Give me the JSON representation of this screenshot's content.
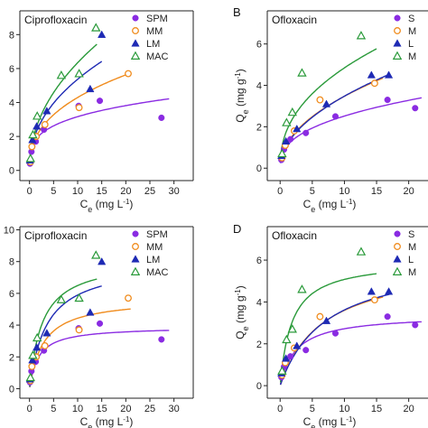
{
  "colors": {
    "SPM": "#8a2be2",
    "MM": "#f08c1e",
    "LM": "#1e2ab4",
    "MAC": "#2a9a3a"
  },
  "markers": {
    "SPM": "circle",
    "MM": "open-circle",
    "LM": "triangle",
    "MAC": "open-triangle"
  },
  "chart_data": [
    {
      "id": "A",
      "type": "scatter",
      "letter": "",
      "title": "Ciprofloxacin",
      "xlabel": "Ce (mg L-1)",
      "ylabel": "",
      "xlim": [
        -2,
        34
      ],
      "ylim": [
        -0.6,
        9.4
      ],
      "xticks": [
        0,
        5,
        10,
        15,
        20,
        25,
        30
      ],
      "yticks": [
        0,
        2,
        4,
        6,
        8
      ],
      "legend": [
        "SPM",
        "MM",
        "LM",
        "MAC"
      ],
      "series": [
        {
          "name": "SPM",
          "x": [
            0.1,
            0.4,
            1.3,
            3.0,
            10.2,
            14.6,
            27.4
          ],
          "y": [
            0.4,
            1.1,
            1.7,
            2.4,
            3.8,
            4.1,
            3.1
          ],
          "fit": {
            "model": "freundlich",
            "k": 1.7,
            "n": 0.27,
            "xmax": 29
          }
        },
        {
          "name": "MM",
          "x": [
            0.2,
            0.5,
            1.4,
            3.2,
            10.3,
            20.5
          ],
          "y": [
            0.5,
            1.4,
            2.0,
            2.7,
            3.7,
            5.7
          ],
          "fit": {
            "model": "freundlich",
            "k": 1.75,
            "n": 0.39,
            "xmax": 21
          }
        },
        {
          "name": "LM",
          "x": [
            0.1,
            0.6,
            1.5,
            3.6,
            12.6,
            15.0
          ],
          "y": [
            0.6,
            1.8,
            2.6,
            3.5,
            4.8,
            8.0
          ],
          "fit": {
            "model": "freundlich",
            "k": 1.95,
            "n": 0.44,
            "xmax": 15
          }
        },
        {
          "name": "MAC",
          "x": [
            0.2,
            0.7,
            1.6,
            6.6,
            10.3,
            13.8
          ],
          "y": [
            0.7,
            2.1,
            3.2,
            5.6,
            5.7,
            8.4
          ],
          "fit": {
            "model": "freundlich",
            "k": 2.15,
            "n": 0.47,
            "xmax": 14
          }
        }
      ]
    },
    {
      "id": "B",
      "type": "scatter",
      "letter": "B",
      "title": "Ofloxacin",
      "xlabel": "Ce (mg L-1)",
      "ylabel": "Qe (mg g-1)",
      "xlim": [
        -2,
        23
      ],
      "ylim": [
        -0.6,
        7.6
      ],
      "xticks": [
        0,
        5,
        10,
        15,
        20
      ],
      "yticks": [
        0,
        2,
        4,
        6
      ],
      "legend": [
        "S",
        "M",
        "L",
        "M"
      ],
      "series": [
        {
          "name": "SPM",
          "x": [
            0.2,
            0.6,
            1.6,
            4.0,
            8.6,
            16.7,
            21.0
          ],
          "y": [
            0.4,
            0.9,
            1.4,
            1.7,
            2.5,
            3.3,
            2.9
          ],
          "fit": {
            "model": "freundlich",
            "k": 1.05,
            "n": 0.38,
            "xmax": 22
          }
        },
        {
          "name": "MM",
          "x": [
            0.3,
            0.8,
            2.2,
            6.2,
            14.7
          ],
          "y": [
            0.5,
            1.1,
            1.8,
            3.3,
            4.1
          ],
          "fit": {
            "model": "freundlich",
            "k": 1.15,
            "n": 0.48,
            "xmax": 16
          }
        },
        {
          "name": "LM",
          "x": [
            0.2,
            0.9,
            2.6,
            7.2,
            14.2,
            16.9
          ],
          "y": [
            0.6,
            1.3,
            1.9,
            3.1,
            4.5,
            4.5
          ],
          "fit": {
            "model": "freundlich",
            "k": 1.1,
            "n": 0.5,
            "xmax": 17
          }
        },
        {
          "name": "MAC",
          "x": [
            0.3,
            1.0,
            1.9,
            3.4,
            12.6
          ],
          "y": [
            0.7,
            2.2,
            2.7,
            4.6,
            6.4
          ],
          "fit": {
            "model": "freundlich",
            "k": 1.8,
            "n": 0.43,
            "xmax": 15
          }
        }
      ]
    },
    {
      "id": "C",
      "type": "scatter",
      "letter": "",
      "title": "Ciprofloxacin",
      "xlabel": "Ce (mg L-1)",
      "ylabel": "",
      "xlim": [
        -2,
        34
      ],
      "ylim": [
        -0.6,
        10.2
      ],
      "xticks": [
        0,
        5,
        10,
        15,
        20,
        25,
        30
      ],
      "yticks": [
        0,
        2,
        4,
        6,
        8,
        10
      ],
      "legend": [
        "SPM",
        "MM",
        "LM",
        "MAC"
      ],
      "series": [
        {
          "name": "SPM",
          "x": [
            0.1,
            0.4,
            1.3,
            3.0,
            10.2,
            14.6,
            27.4
          ],
          "y": [
            0.4,
            1.1,
            1.7,
            2.4,
            3.8,
            4.1,
            3.1
          ],
          "fit": {
            "model": "langmuir",
            "qm": 3.9,
            "b": 0.55,
            "xmax": 29
          }
        },
        {
          "name": "MM",
          "x": [
            0.2,
            0.5,
            1.4,
            3.2,
            10.3,
            20.5
          ],
          "y": [
            0.5,
            1.4,
            2.0,
            2.7,
            3.7,
            5.7
          ],
          "fit": {
            "model": "langmuir",
            "qm": 5.7,
            "b": 0.35,
            "xmax": 21
          }
        },
        {
          "name": "LM",
          "x": [
            0.1,
            0.6,
            1.5,
            3.6,
            12.6,
            15.0
          ],
          "y": [
            0.6,
            1.8,
            2.6,
            3.5,
            4.8,
            8.0
          ],
          "fit": {
            "model": "langmuir",
            "qm": 8.0,
            "b": 0.28,
            "xmax": 15
          }
        },
        {
          "name": "MAC",
          "x": [
            0.2,
            0.7,
            1.6,
            6.6,
            10.3,
            13.8
          ],
          "y": [
            0.7,
            2.1,
            3.2,
            5.6,
            5.7,
            8.4
          ],
          "fit": {
            "model": "langmuir",
            "qm": 8.2,
            "b": 0.38,
            "xmax": 14
          }
        }
      ]
    },
    {
      "id": "D",
      "type": "scatter",
      "letter": "D",
      "title": "Ofloxacin",
      "xlabel": "Ce (mg L-1)",
      "ylabel": "Qe (mg g-1)",
      "xlim": [
        -2,
        23
      ],
      "ylim": [
        -0.6,
        7.6
      ],
      "xticks": [
        0,
        5,
        10,
        15,
        20
      ],
      "yticks": [
        0,
        2,
        4,
        6
      ],
      "legend": [
        "S",
        "M",
        "L",
        "M"
      ],
      "series": [
        {
          "name": "SPM",
          "x": [
            0.2,
            0.6,
            1.6,
            4.0,
            8.6,
            16.7,
            21.0
          ],
          "y": [
            0.4,
            0.9,
            1.4,
            1.7,
            2.5,
            3.3,
            2.9
          ],
          "fit": {
            "model": "langmuir",
            "qm": 3.4,
            "b": 0.4,
            "xmax": 22
          }
        },
        {
          "name": "MM",
          "x": [
            0.3,
            0.8,
            2.2,
            6.2,
            14.7
          ],
          "y": [
            0.5,
            1.1,
            1.8,
            3.3,
            4.1
          ],
          "fit": {
            "model": "langmuir",
            "qm": 6.0,
            "b": 0.15,
            "xmax": 16
          }
        },
        {
          "name": "LM",
          "x": [
            0.2,
            0.9,
            2.6,
            7.2,
            14.2,
            16.9
          ],
          "y": [
            0.6,
            1.3,
            1.9,
            3.1,
            4.5,
            4.5
          ],
          "fit": {
            "model": "langmuir",
            "qm": 6.2,
            "b": 0.14,
            "xmax": 17
          }
        },
        {
          "name": "MAC",
          "x": [
            0.3,
            1.0,
            1.9,
            3.4,
            12.6
          ],
          "y": [
            0.7,
            2.2,
            2.7,
            4.6,
            6.4
          ],
          "fit": {
            "model": "langmuir",
            "qm": 6.0,
            "b": 0.55,
            "xmax": 15
          }
        }
      ]
    }
  ]
}
